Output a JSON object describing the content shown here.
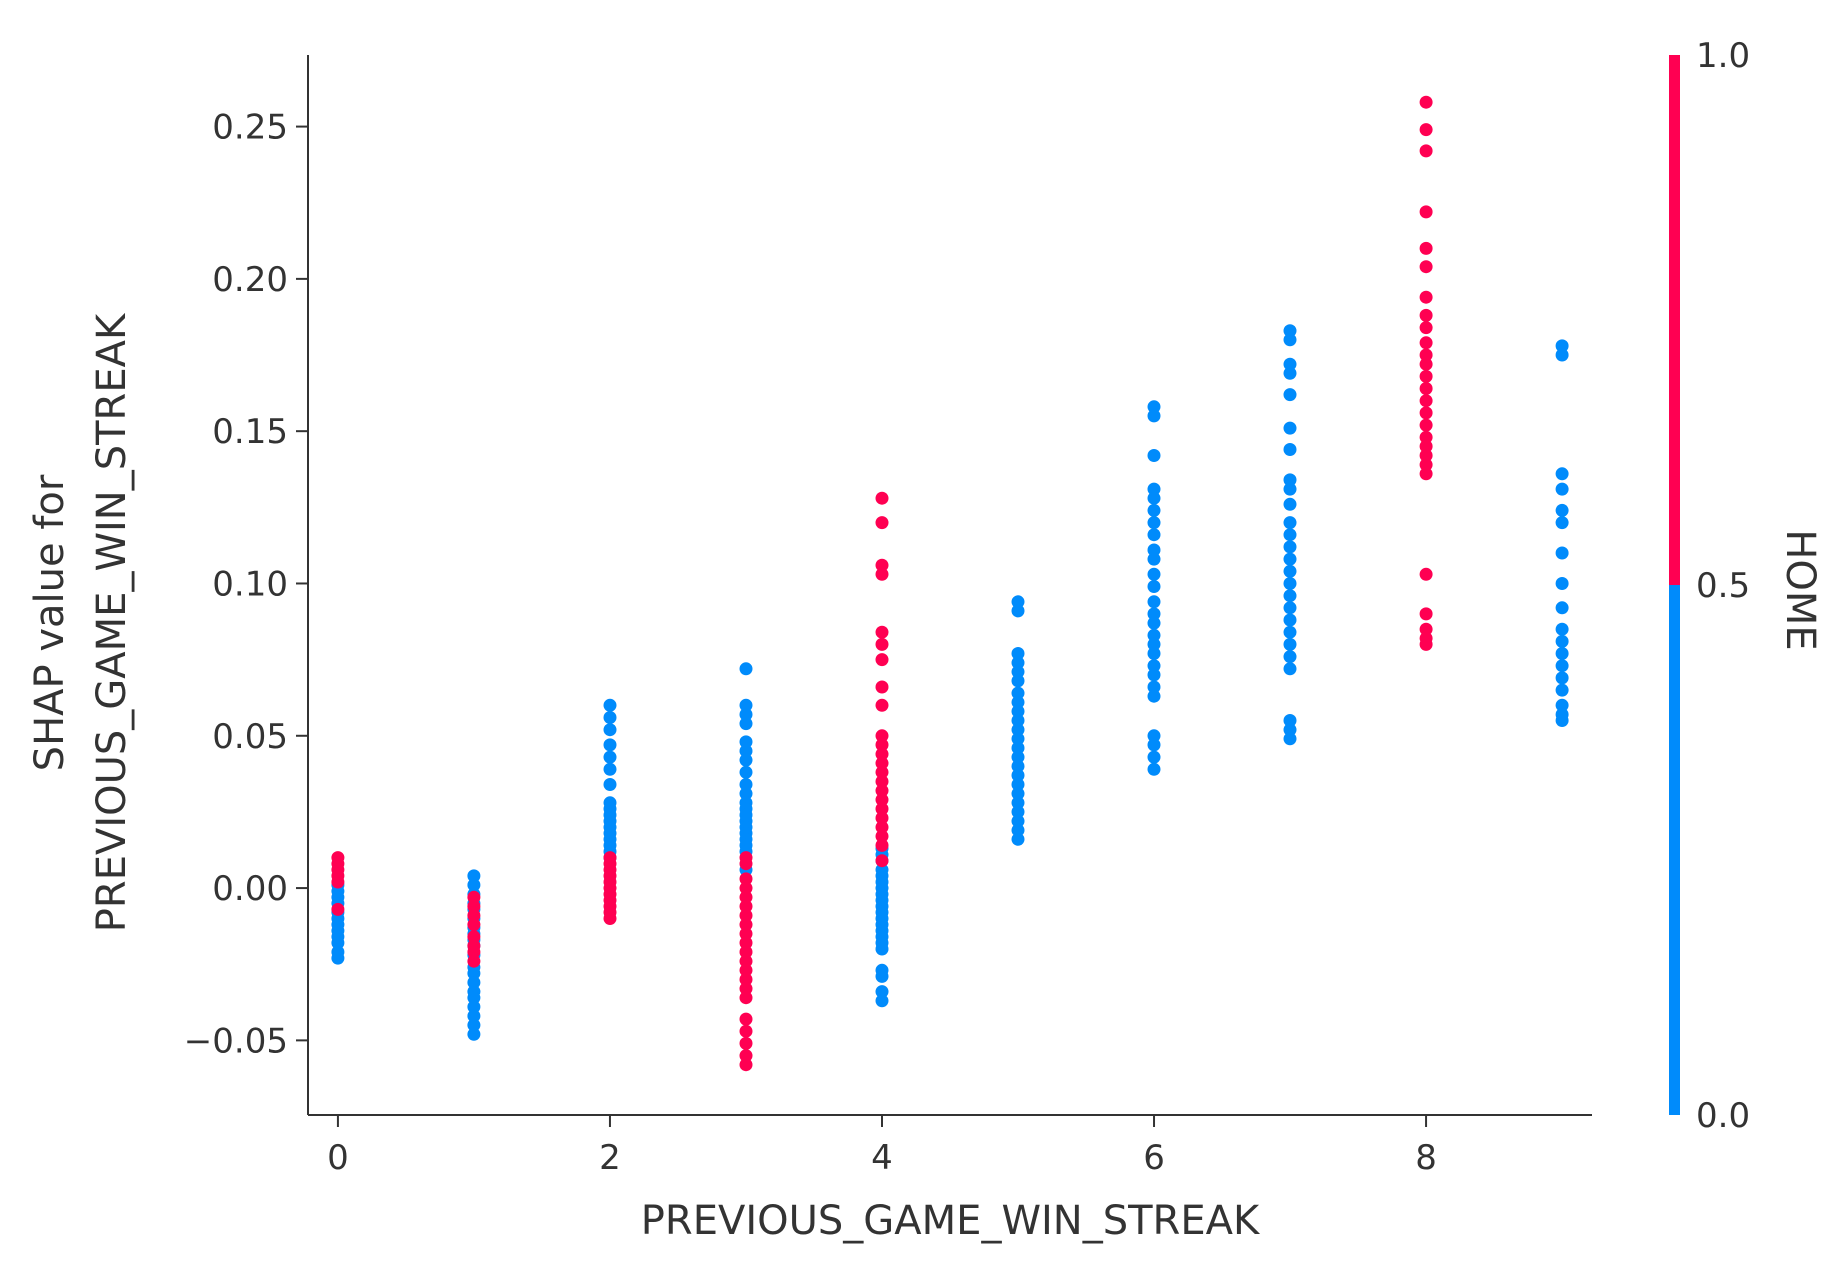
{
  "chart_data": {
    "type": "scatter",
    "title": "",
    "xlabel": "PREVIOUS_GAME_WIN_STREAK",
    "ylabel_lines": [
      "SHAP value for",
      "PREVIOUS_GAME_WIN_STREAK"
    ],
    "xlim": [
      -0.22,
      9.22
    ],
    "ylim": [
      -0.0745,
      0.2735
    ],
    "x_ticks": [
      0,
      2,
      4,
      6,
      8
    ],
    "y_ticks": [
      {
        "value": -0.05,
        "label": "−0.05"
      },
      {
        "value": 0.0,
        "label": "0.00"
      },
      {
        "value": 0.05,
        "label": "0.05"
      },
      {
        "value": 0.1,
        "label": "0.10"
      },
      {
        "value": 0.15,
        "label": "0.15"
      },
      {
        "value": 0.2,
        "label": "0.20"
      },
      {
        "value": 0.25,
        "label": "0.25"
      }
    ],
    "grid": false,
    "color_feature": "HOME",
    "colorbar": {
      "label": "HOME",
      "min": 0.0,
      "max": 1.0,
      "ticks": [
        {
          "value": 0.0,
          "label": "0.0"
        },
        {
          "value": 0.5,
          "label": "0.5"
        },
        {
          "value": 1.0,
          "label": "1.0"
        }
      ],
      "low_color": "#008bfb",
      "high_color": "#ff0052"
    },
    "series": [
      {
        "home": 0,
        "color": "#008bfb",
        "points": [
          [
            0,
            -0.023
          ],
          [
            0,
            -0.021
          ],
          [
            0,
            -0.018
          ],
          [
            0,
            -0.016
          ],
          [
            0,
            -0.014
          ],
          [
            0,
            -0.012
          ],
          [
            0,
            -0.01
          ],
          [
            0,
            -0.008
          ],
          [
            0,
            -0.005
          ],
          [
            0,
            -0.003
          ],
          [
            0,
            -0.001
          ],
          [
            0,
            0.001
          ],
          [
            1,
            0.004
          ],
          [
            1,
            0.001
          ],
          [
            1,
            -0.002
          ],
          [
            1,
            -0.005
          ],
          [
            1,
            -0.007
          ],
          [
            1,
            -0.01
          ],
          [
            1,
            -0.013
          ],
          [
            1,
            -0.015
          ],
          [
            1,
            -0.017
          ],
          [
            1,
            -0.019
          ],
          [
            1,
            -0.022
          ],
          [
            1,
            -0.026
          ],
          [
            1,
            -0.028
          ],
          [
            1,
            -0.031
          ],
          [
            1,
            -0.034
          ],
          [
            1,
            -0.036
          ],
          [
            1,
            -0.039
          ],
          [
            1,
            -0.042
          ],
          [
            1,
            -0.045
          ],
          [
            1,
            -0.048
          ],
          [
            2,
            0.06
          ],
          [
            2,
            0.056
          ],
          [
            2,
            0.052
          ],
          [
            2,
            0.047
          ],
          [
            2,
            0.043
          ],
          [
            2,
            0.039
          ],
          [
            2,
            0.034
          ],
          [
            2,
            0.028
          ],
          [
            2,
            0.026
          ],
          [
            2,
            0.024
          ],
          [
            2,
            0.022
          ],
          [
            2,
            0.02
          ],
          [
            2,
            0.018
          ],
          [
            2,
            0.016
          ],
          [
            2,
            0.014
          ],
          [
            2,
            0.012
          ],
          [
            2,
            0.01
          ],
          [
            3,
            0.072
          ],
          [
            3,
            0.06
          ],
          [
            3,
            0.057
          ],
          [
            3,
            0.054
          ],
          [
            3,
            0.048
          ],
          [
            3,
            0.045
          ],
          [
            3,
            0.042
          ],
          [
            3,
            0.038
          ],
          [
            3,
            0.034
          ],
          [
            3,
            0.031
          ],
          [
            3,
            0.028
          ],
          [
            3,
            0.026
          ],
          [
            3,
            0.024
          ],
          [
            3,
            0.022
          ],
          [
            3,
            0.02
          ],
          [
            3,
            0.018
          ],
          [
            3,
            0.016
          ],
          [
            3,
            0.014
          ],
          [
            3,
            0.012
          ],
          [
            3,
            0.006
          ],
          [
            4,
            0.013
          ],
          [
            4,
            0.011
          ],
          [
            4,
            0.009
          ],
          [
            4,
            0.006
          ],
          [
            4,
            0.004
          ],
          [
            4,
            0.002
          ],
          [
            4,
            0.0
          ],
          [
            4,
            -0.002
          ],
          [
            4,
            -0.004
          ],
          [
            4,
            -0.006
          ],
          [
            4,
            -0.008
          ],
          [
            4,
            -0.01
          ],
          [
            4,
            -0.012
          ],
          [
            4,
            -0.014
          ],
          [
            4,
            -0.016
          ],
          [
            4,
            -0.018
          ],
          [
            4,
            -0.02
          ],
          [
            4,
            -0.027
          ],
          [
            4,
            -0.029
          ],
          [
            4,
            -0.034
          ],
          [
            4,
            -0.037
          ],
          [
            5,
            0.094
          ],
          [
            5,
            0.091
          ],
          [
            5,
            0.077
          ],
          [
            5,
            0.074
          ],
          [
            5,
            0.071
          ],
          [
            5,
            0.068
          ],
          [
            5,
            0.064
          ],
          [
            5,
            0.061
          ],
          [
            5,
            0.058
          ],
          [
            5,
            0.055
          ],
          [
            5,
            0.052
          ],
          [
            5,
            0.049
          ],
          [
            5,
            0.046
          ],
          [
            5,
            0.043
          ],
          [
            5,
            0.04
          ],
          [
            5,
            0.037
          ],
          [
            5,
            0.034
          ],
          [
            5,
            0.031
          ],
          [
            5,
            0.028
          ],
          [
            5,
            0.025
          ],
          [
            5,
            0.022
          ],
          [
            5,
            0.019
          ],
          [
            5,
            0.016
          ],
          [
            6,
            0.158
          ],
          [
            6,
            0.155
          ],
          [
            6,
            0.142
          ],
          [
            6,
            0.131
          ],
          [
            6,
            0.128
          ],
          [
            6,
            0.124
          ],
          [
            6,
            0.12
          ],
          [
            6,
            0.116
          ],
          [
            6,
            0.111
          ],
          [
            6,
            0.108
          ],
          [
            6,
            0.103
          ],
          [
            6,
            0.099
          ],
          [
            6,
            0.094
          ],
          [
            6,
            0.09
          ],
          [
            6,
            0.087
          ],
          [
            6,
            0.083
          ],
          [
            6,
            0.08
          ],
          [
            6,
            0.077
          ],
          [
            6,
            0.073
          ],
          [
            6,
            0.07
          ],
          [
            6,
            0.066
          ],
          [
            6,
            0.063
          ],
          [
            6,
            0.05
          ],
          [
            6,
            0.047
          ],
          [
            6,
            0.043
          ],
          [
            6,
            0.039
          ],
          [
            7,
            0.183
          ],
          [
            7,
            0.18
          ],
          [
            7,
            0.172
          ],
          [
            7,
            0.169
          ],
          [
            7,
            0.162
          ],
          [
            7,
            0.151
          ],
          [
            7,
            0.144
          ],
          [
            7,
            0.134
          ],
          [
            7,
            0.131
          ],
          [
            7,
            0.126
          ],
          [
            7,
            0.12
          ],
          [
            7,
            0.116
          ],
          [
            7,
            0.112
          ],
          [
            7,
            0.108
          ],
          [
            7,
            0.104
          ],
          [
            7,
            0.1
          ],
          [
            7,
            0.096
          ],
          [
            7,
            0.092
          ],
          [
            7,
            0.088
          ],
          [
            7,
            0.084
          ],
          [
            7,
            0.08
          ],
          [
            7,
            0.076
          ],
          [
            7,
            0.072
          ],
          [
            7,
            0.055
          ],
          [
            7,
            0.052
          ],
          [
            7,
            0.049
          ],
          [
            9,
            0.178
          ],
          [
            9,
            0.175
          ],
          [
            9,
            0.136
          ],
          [
            9,
            0.131
          ],
          [
            9,
            0.124
          ],
          [
            9,
            0.12
          ],
          [
            9,
            0.11
          ],
          [
            9,
            0.1
          ],
          [
            9,
            0.092
          ],
          [
            9,
            0.085
          ],
          [
            9,
            0.081
          ],
          [
            9,
            0.077
          ],
          [
            9,
            0.073
          ],
          [
            9,
            0.069
          ],
          [
            9,
            0.065
          ],
          [
            9,
            0.06
          ],
          [
            9,
            0.057
          ],
          [
            9,
            0.055
          ]
        ]
      },
      {
        "home": 1,
        "color": "#ff0052",
        "points": [
          [
            0,
            0.01
          ],
          [
            0,
            0.008
          ],
          [
            0,
            0.006
          ],
          [
            0,
            0.004
          ],
          [
            0,
            0.002
          ],
          [
            0,
            -0.007
          ],
          [
            1,
            -0.003
          ],
          [
            1,
            -0.006
          ],
          [
            1,
            -0.009
          ],
          [
            1,
            -0.012
          ],
          [
            1,
            -0.016
          ],
          [
            1,
            -0.019
          ],
          [
            1,
            -0.021
          ],
          [
            1,
            -0.024
          ],
          [
            2,
            0.01
          ],
          [
            2,
            0.008
          ],
          [
            2,
            0.006
          ],
          [
            2,
            0.004
          ],
          [
            2,
            0.002
          ],
          [
            2,
            0.0
          ],
          [
            2,
            -0.002
          ],
          [
            2,
            -0.004
          ],
          [
            2,
            -0.006
          ],
          [
            2,
            -0.008
          ],
          [
            2,
            -0.01
          ],
          [
            3,
            0.01
          ],
          [
            3,
            0.008
          ],
          [
            3,
            0.003
          ],
          [
            3,
            0.0
          ],
          [
            3,
            -0.003
          ],
          [
            3,
            -0.006
          ],
          [
            3,
            -0.009
          ],
          [
            3,
            -0.012
          ],
          [
            3,
            -0.015
          ],
          [
            3,
            -0.018
          ],
          [
            3,
            -0.021
          ],
          [
            3,
            -0.024
          ],
          [
            3,
            -0.027
          ],
          [
            3,
            -0.03
          ],
          [
            3,
            -0.033
          ],
          [
            3,
            -0.036
          ],
          [
            3,
            -0.043
          ],
          [
            3,
            -0.047
          ],
          [
            3,
            -0.051
          ],
          [
            3,
            -0.055
          ],
          [
            3,
            -0.058
          ],
          [
            4,
            0.128
          ],
          [
            4,
            0.12
          ],
          [
            4,
            0.106
          ],
          [
            4,
            0.103
          ],
          [
            4,
            0.084
          ],
          [
            4,
            0.08
          ],
          [
            4,
            0.075
          ],
          [
            4,
            0.066
          ],
          [
            4,
            0.06
          ],
          [
            4,
            0.05
          ],
          [
            4,
            0.047
          ],
          [
            4,
            0.044
          ],
          [
            4,
            0.041
          ],
          [
            4,
            0.038
          ],
          [
            4,
            0.035
          ],
          [
            4,
            0.032
          ],
          [
            4,
            0.029
          ],
          [
            4,
            0.026
          ],
          [
            4,
            0.023
          ],
          [
            4,
            0.02
          ],
          [
            4,
            0.017
          ],
          [
            4,
            0.014
          ],
          [
            4,
            0.009
          ],
          [
            8,
            0.258
          ],
          [
            8,
            0.249
          ],
          [
            8,
            0.242
          ],
          [
            8,
            0.222
          ],
          [
            8,
            0.21
          ],
          [
            8,
            0.204
          ],
          [
            8,
            0.194
          ],
          [
            8,
            0.188
          ],
          [
            8,
            0.184
          ],
          [
            8,
            0.179
          ],
          [
            8,
            0.175
          ],
          [
            8,
            0.172
          ],
          [
            8,
            0.168
          ],
          [
            8,
            0.164
          ],
          [
            8,
            0.16
          ],
          [
            8,
            0.156
          ],
          [
            8,
            0.152
          ],
          [
            8,
            0.148
          ],
          [
            8,
            0.145
          ],
          [
            8,
            0.142
          ],
          [
            8,
            0.139
          ],
          [
            8,
            0.136
          ],
          [
            8,
            0.103
          ],
          [
            8,
            0.09
          ],
          [
            8,
            0.085
          ],
          [
            8,
            0.082
          ],
          [
            8,
            0.08
          ]
        ]
      }
    ]
  }
}
